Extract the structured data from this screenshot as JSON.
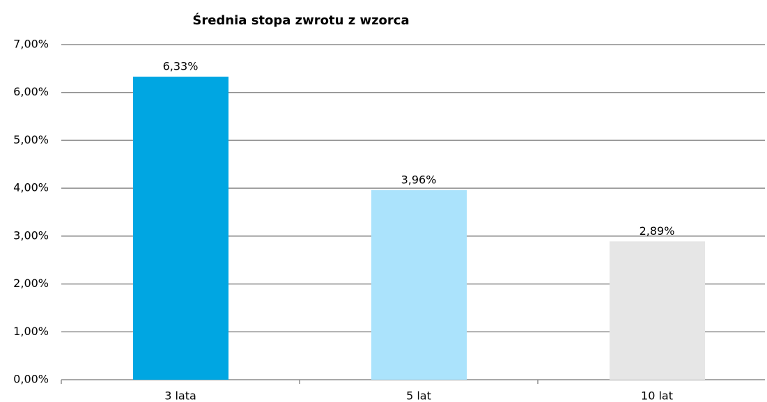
{
  "chart_data": {
    "type": "bar",
    "title": "Średnia stopa zwrotu z wzorca",
    "categories": [
      "3 lata",
      "5 lat",
      "10 lat"
    ],
    "values": [
      6.33,
      3.96,
      2.89
    ],
    "value_labels": [
      "6,33%",
      "3,96%",
      "2,89%"
    ],
    "colors": [
      "#00a6e2",
      "#abe3fc",
      "#e6e6e6"
    ],
    "ylim": [
      0,
      7
    ],
    "yticks": [
      {
        "value": 0,
        "label": "0,00%"
      },
      {
        "value": 1,
        "label": "1,00%"
      },
      {
        "value": 2,
        "label": "2,00%"
      },
      {
        "value": 3,
        "label": "3,00%"
      },
      {
        "value": 4,
        "label": "4,00%"
      },
      {
        "value": 5,
        "label": "5,00%"
      },
      {
        "value": 6,
        "label": "6,00%"
      },
      {
        "value": 7,
        "label": "7,00%"
      }
    ],
    "grid": true
  }
}
